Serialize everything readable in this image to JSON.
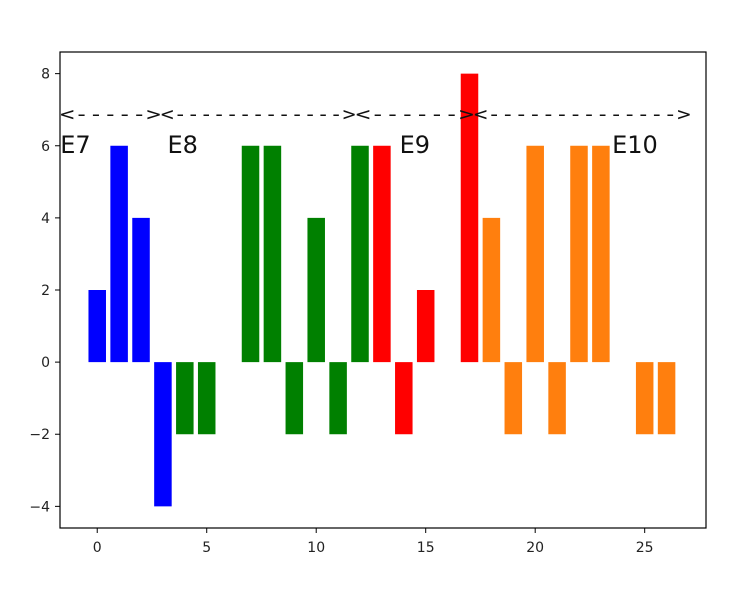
{
  "chart_data": {
    "type": "bar",
    "x": [
      0,
      1,
      2,
      3,
      4,
      5,
      6,
      7,
      8,
      9,
      10,
      11,
      12,
      13,
      14,
      15,
      16,
      17,
      18,
      19,
      20,
      21,
      22,
      23,
      24,
      25,
      26
    ],
    "values": [
      2,
      6,
      4,
      -4,
      -2,
      -2,
      0,
      6,
      6,
      -2,
      4,
      -2,
      6,
      6,
      -2,
      2,
      0,
      8,
      4,
      -2,
      6,
      -2,
      6,
      6,
      0,
      -2,
      -2
    ],
    "bar_colors": [
      "#0000ff",
      "#0000ff",
      "#0000ff",
      "#0000ff",
      "#008000",
      "#008000",
      "#008000",
      "#008000",
      "#008000",
      "#008000",
      "#008000",
      "#008000",
      "#008000",
      "#ff0000",
      "#ff0000",
      "#ff0000",
      "#ff0000",
      "#ff0000",
      "#ff7f0e",
      "#ff7f0e",
      "#ff7f0e",
      "#ff7f0e",
      "#ff7f0e",
      "#ff7f0e",
      "#ff7f0e",
      "#ff7f0e",
      "#ff7f0e"
    ],
    "xlim": [
      -1.7,
      27.8
    ],
    "ylim": [
      -4.6,
      8.6
    ],
    "x_ticks": [
      0,
      5,
      10,
      15,
      20,
      25
    ],
    "y_ticks": [
      -4,
      -2,
      0,
      2,
      4,
      6,
      8
    ],
    "y_tick_labels": [
      "−4",
      "−2",
      "0",
      "2",
      "4",
      "6",
      "8"
    ],
    "regions": [
      {
        "label": "E7",
        "arrow": "<----->",
        "x_start": -1.7,
        "x_end": 2.9,
        "label_x": -0.3
      },
      {
        "label": "E8",
        "arrow": "<------------->",
        "x_start": 2.9,
        "x_end": 11.8,
        "label_x": 4.6
      },
      {
        "label": "E9",
        "arrow": "<------>",
        "x_start": 11.8,
        "x_end": 17.2,
        "label_x": 15.2
      },
      {
        "label": "E10",
        "arrow": "<-------------->",
        "x_start": 17.2,
        "x_end": 27.1,
        "label_x": 25.6
      }
    ],
    "region_arrow_y": 6.7,
    "region_label_y": 5.8,
    "title": "",
    "xlabel": "",
    "ylabel": "",
    "grid": false
  }
}
